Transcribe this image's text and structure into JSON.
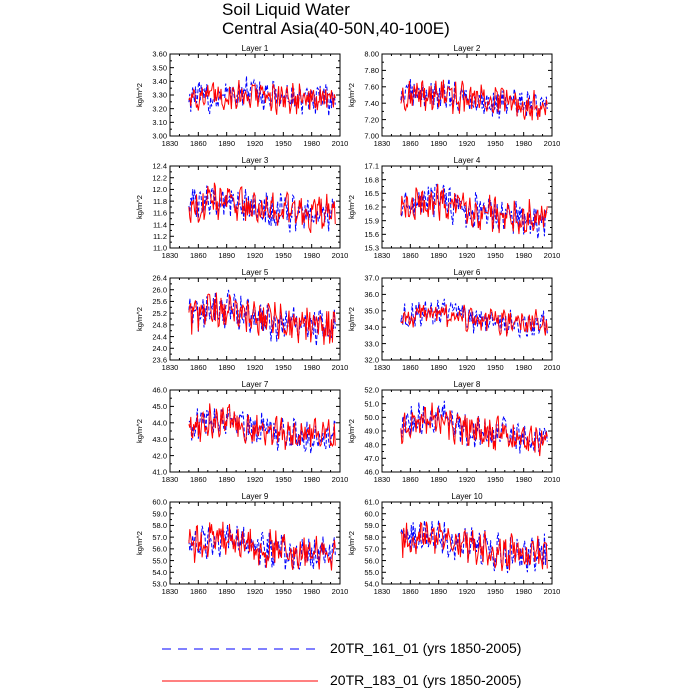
{
  "title": {
    "line1": "Soil Liquid Water",
    "line2": "Central Asia(40-50N,40-100E)"
  },
  "legend": [
    {
      "label": "20TR_161_01 (yrs 1850-2005)",
      "color": "#0000ff",
      "style": "dashed"
    },
    {
      "label": "20TR_183_01 (yrs 1850-2005)",
      "color": "#ff0000",
      "style": "solid"
    }
  ],
  "chart_data": [
    {
      "type": "line",
      "title": "Layer 1",
      "ylabel": "kg/m^2",
      "xlim": [
        1830,
        2010
      ],
      "x_ticks": [
        "1830",
        "1860",
        "1890",
        "1920",
        "1950",
        "1980",
        "2010"
      ],
      "ylim": [
        3.0,
        3.6
      ],
      "y_ticks": [
        "3.00",
        "3.10",
        "3.20",
        "3.30",
        "3.40",
        "3.50",
        "3.60"
      ],
      "series_range": [
        3.05,
        3.49
      ],
      "series": [
        {
          "name": "20TR_161_01",
          "anchors": [
            3.3,
            3.27,
            3.31,
            3.32,
            3.29,
            3.27,
            3.26,
            3.27
          ]
        },
        {
          "name": "20TR_183_01",
          "anchors": [
            3.3,
            3.28,
            3.3,
            3.31,
            3.28,
            3.28,
            3.27,
            3.26
          ]
        }
      ]
    },
    {
      "type": "line",
      "title": "Layer 2",
      "ylabel": "kg/m^2",
      "xlim": [
        1830,
        2010
      ],
      "x_ticks": [
        "1830",
        "1860",
        "1890",
        "1920",
        "1950",
        "1980",
        "2010"
      ],
      "ylim": [
        7.0,
        8.0
      ],
      "y_ticks": [
        "7.00",
        "7.20",
        "7.40",
        "7.60",
        "7.80",
        "8.00"
      ],
      "series_range": [
        7.08,
        7.8
      ],
      "series": [
        {
          "name": "20TR_161_01",
          "anchors": [
            7.5,
            7.52,
            7.5,
            7.46,
            7.42,
            7.4,
            7.36,
            7.38
          ]
        },
        {
          "name": "20TR_183_01",
          "anchors": [
            7.48,
            7.5,
            7.5,
            7.46,
            7.44,
            7.42,
            7.4,
            7.36
          ]
        }
      ]
    },
    {
      "type": "line",
      "title": "Layer 3",
      "ylabel": "kg/m^2",
      "xlim": [
        1830,
        2010
      ],
      "x_ticks": [
        "1830",
        "1860",
        "1890",
        "1920",
        "1950",
        "1980",
        "2010"
      ],
      "ylim": [
        11.0,
        12.4
      ],
      "y_ticks": [
        "11.0",
        "11.2",
        "11.4",
        "11.6",
        "11.8",
        "12.0",
        "12.2",
        "12.4"
      ],
      "series_range": [
        11.1,
        12.25
      ],
      "series": [
        {
          "name": "20TR_161_01",
          "anchors": [
            11.75,
            11.8,
            11.85,
            11.72,
            11.62,
            11.6,
            11.55,
            11.55
          ]
        },
        {
          "name": "20TR_183_01",
          "anchors": [
            11.7,
            11.78,
            11.8,
            11.7,
            11.65,
            11.62,
            11.58,
            11.6
          ]
        }
      ]
    },
    {
      "type": "line",
      "title": "Layer 4",
      "ylabel": "kg/m^2",
      "xlim": [
        1830,
        2010
      ],
      "x_ticks": [
        "1830",
        "1860",
        "1890",
        "1920",
        "1950",
        "1980",
        "2010"
      ],
      "ylim": [
        15.3,
        17.1
      ],
      "y_ticks": [
        "15.3",
        "15.6",
        "15.9",
        "16.2",
        "16.5",
        "16.8",
        "17.1"
      ],
      "series_range": [
        15.4,
        16.95
      ],
      "series": [
        {
          "name": "20TR_161_01",
          "anchors": [
            16.25,
            16.3,
            16.35,
            16.15,
            16.05,
            16.0,
            15.9,
            15.95
          ]
        },
        {
          "name": "20TR_183_01",
          "anchors": [
            16.2,
            16.28,
            16.3,
            16.15,
            16.08,
            16.05,
            16.0,
            15.95
          ]
        }
      ]
    },
    {
      "type": "line",
      "title": "Layer 5",
      "ylabel": "kg/m^2",
      "xlim": [
        1830,
        2010
      ],
      "x_ticks": [
        "1830",
        "1860",
        "1890",
        "1920",
        "1950",
        "1980",
        "2010"
      ],
      "ylim": [
        23.6,
        26.4
      ],
      "y_ticks": [
        "23.6",
        "24.0",
        "24.4",
        "24.8",
        "25.2",
        "25.6",
        "26.0",
        "26.4"
      ],
      "series_range": [
        23.9,
        26.3
      ],
      "series": [
        {
          "name": "20TR_161_01",
          "anchors": [
            25.2,
            25.3,
            25.4,
            25.0,
            24.9,
            24.8,
            24.7,
            24.85
          ]
        },
        {
          "name": "20TR_183_01",
          "anchors": [
            25.1,
            25.25,
            25.3,
            25.0,
            24.95,
            24.85,
            24.8,
            24.7
          ]
        }
      ]
    },
    {
      "type": "line",
      "title": "Layer 6",
      "ylabel": "kg/m^2",
      "xlim": [
        1830,
        2010
      ],
      "x_ticks": [
        "1830",
        "1860",
        "1890",
        "1920",
        "1950",
        "1980",
        "2010"
      ],
      "ylim": [
        32.0,
        37.0
      ],
      "y_ticks": [
        "32.0",
        "33.0",
        "34.0",
        "35.0",
        "36.0",
        "37.0"
      ],
      "series_range": [
        33.2,
        36.2
      ],
      "series": [
        {
          "name": "20TR_161_01",
          "anchors": [
            34.6,
            34.9,
            35.0,
            34.6,
            34.4,
            34.3,
            34.2,
            34.3
          ]
        },
        {
          "name": "20TR_183_01",
          "anchors": [
            34.5,
            34.8,
            34.9,
            34.5,
            34.4,
            34.3,
            34.3,
            34.2
          ]
        }
      ]
    },
    {
      "type": "line",
      "title": "Layer 7",
      "ylabel": "kg/m^2",
      "xlim": [
        1830,
        2010
      ],
      "x_ticks": [
        "1830",
        "1860",
        "1890",
        "1920",
        "1950",
        "1980",
        "2010"
      ],
      "ylim": [
        41.0,
        46.0
      ],
      "y_ticks": [
        "41.0",
        "42.0",
        "43.0",
        "44.0",
        "45.0",
        "46.0"
      ],
      "series_range": [
        41.8,
        45.7
      ],
      "series": [
        {
          "name": "20TR_161_01",
          "anchors": [
            43.8,
            44.2,
            44.4,
            43.7,
            43.4,
            43.3,
            43.1,
            43.3
          ]
        },
        {
          "name": "20TR_183_01",
          "anchors": [
            43.7,
            44.1,
            44.2,
            43.6,
            43.5,
            43.3,
            43.2,
            43.1
          ]
        }
      ]
    },
    {
      "type": "line",
      "title": "Layer 8",
      "ylabel": "kg/m^2",
      "xlim": [
        1830,
        2010
      ],
      "x_ticks": [
        "1830",
        "1860",
        "1890",
        "1920",
        "1950",
        "1980",
        "2010"
      ],
      "ylim": [
        46.0,
        52.0
      ],
      "y_ticks": [
        "46.0",
        "47.0",
        "48.0",
        "49.0",
        "50.0",
        "51.0",
        "52.0"
      ],
      "series_range": [
        46.8,
        51.6
      ],
      "series": [
        {
          "name": "20TR_161_01",
          "anchors": [
            49.3,
            49.8,
            50.0,
            49.2,
            48.8,
            48.7,
            48.4,
            48.6
          ]
        },
        {
          "name": "20TR_183_01",
          "anchors": [
            49.2,
            49.6,
            49.8,
            49.1,
            48.9,
            48.7,
            48.5,
            48.4
          ]
        }
      ]
    },
    {
      "type": "line",
      "title": "Layer 9",
      "ylabel": "kg/m^2",
      "xlim": [
        1830,
        2010
      ],
      "x_ticks": [
        "1830",
        "1860",
        "1890",
        "1920",
        "1950",
        "1980",
        "2010"
      ],
      "ylim": [
        53.0,
        60.0
      ],
      "y_ticks": [
        "53.0",
        "54.0",
        "55.0",
        "56.0",
        "57.0",
        "58.0",
        "59.0",
        "60.0"
      ],
      "series_range": [
        53.6,
        59.4
      ],
      "series": [
        {
          "name": "20TR_161_01",
          "anchors": [
            56.4,
            56.9,
            57.1,
            56.2,
            55.9,
            55.7,
            55.5,
            55.8
          ]
        },
        {
          "name": "20TR_183_01",
          "anchors": [
            56.3,
            56.7,
            56.9,
            56.1,
            56.0,
            55.8,
            55.6,
            55.7
          ]
        }
      ]
    },
    {
      "type": "line",
      "title": "Layer 10",
      "ylabel": "kg/m^2",
      "xlim": [
        1830,
        2010
      ],
      "x_ticks": [
        "1830",
        "1860",
        "1890",
        "1920",
        "1950",
        "1980",
        "2010"
      ],
      "ylim": [
        54.0,
        61.0
      ],
      "y_ticks": [
        "54.0",
        "55.0",
        "56.0",
        "57.0",
        "58.0",
        "59.0",
        "60.0",
        "61.0"
      ],
      "series_range": [
        54.4,
        60.2
      ],
      "series": [
        {
          "name": "20TR_161_01",
          "anchors": [
            58.0,
            58.2,
            58.0,
            57.3,
            56.9,
            56.6,
            56.4,
            56.6
          ]
        },
        {
          "name": "20TR_183_01",
          "anchors": [
            57.9,
            58.1,
            57.9,
            57.2,
            57.0,
            56.7,
            56.5,
            56.4
          ]
        }
      ]
    }
  ]
}
